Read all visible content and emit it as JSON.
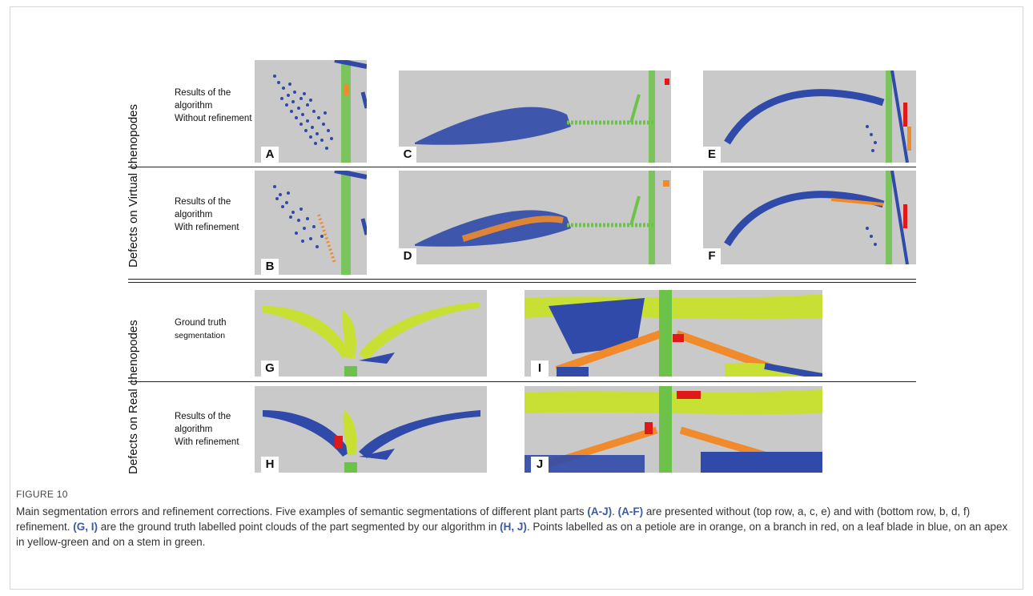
{
  "figure": {
    "side_labels": {
      "virtual": "Defects on Virtual chenopodes",
      "real": "Defects on Real chenopodes"
    },
    "row_texts": {
      "row1": [
        "Results of the",
        "algorithm",
        "Without refinement"
      ],
      "row2": [
        "Results of the",
        "algorithm",
        "With refinement"
      ],
      "row3": [
        "Ground truth",
        "segmentation"
      ],
      "row4": [
        "Results of the",
        "algorithm",
        "With refinement"
      ]
    },
    "panels": {
      "A": "A",
      "B": "B",
      "C": "C",
      "D": "D",
      "E": "E",
      "F": "F",
      "G": "G",
      "H": "H",
      "I": "I",
      "J": "J"
    },
    "colors": {
      "petiole": "#f08a2a",
      "branch": "#e01818",
      "leaf_blade": "#2f4aa8",
      "apex": "#c8e033",
      "stem": "#6dc34a",
      "panel_bg": "#c9c9c9"
    }
  },
  "caption": {
    "title": "FIGURE 10",
    "t1": "Main segmentation errors and refinement corrections. Five examples of semantic segmentations of different plant parts ",
    "r1": "(A-J)",
    "t2": ". ",
    "r2": "(A-F)",
    "t3": " are presented without (top row, a, c, e) and with (bottom row, b, d, f) refinement. ",
    "r3": "(G, I)",
    "t4": " are the ground truth labelled point clouds of the part segmented by our algorithm in ",
    "r4": "(H, J)",
    "t5": ". Points labelled as on a petiole are in orange, on a branch in red, on a leaf blade in blue, on an apex in yellow-green and on a stem in green."
  }
}
